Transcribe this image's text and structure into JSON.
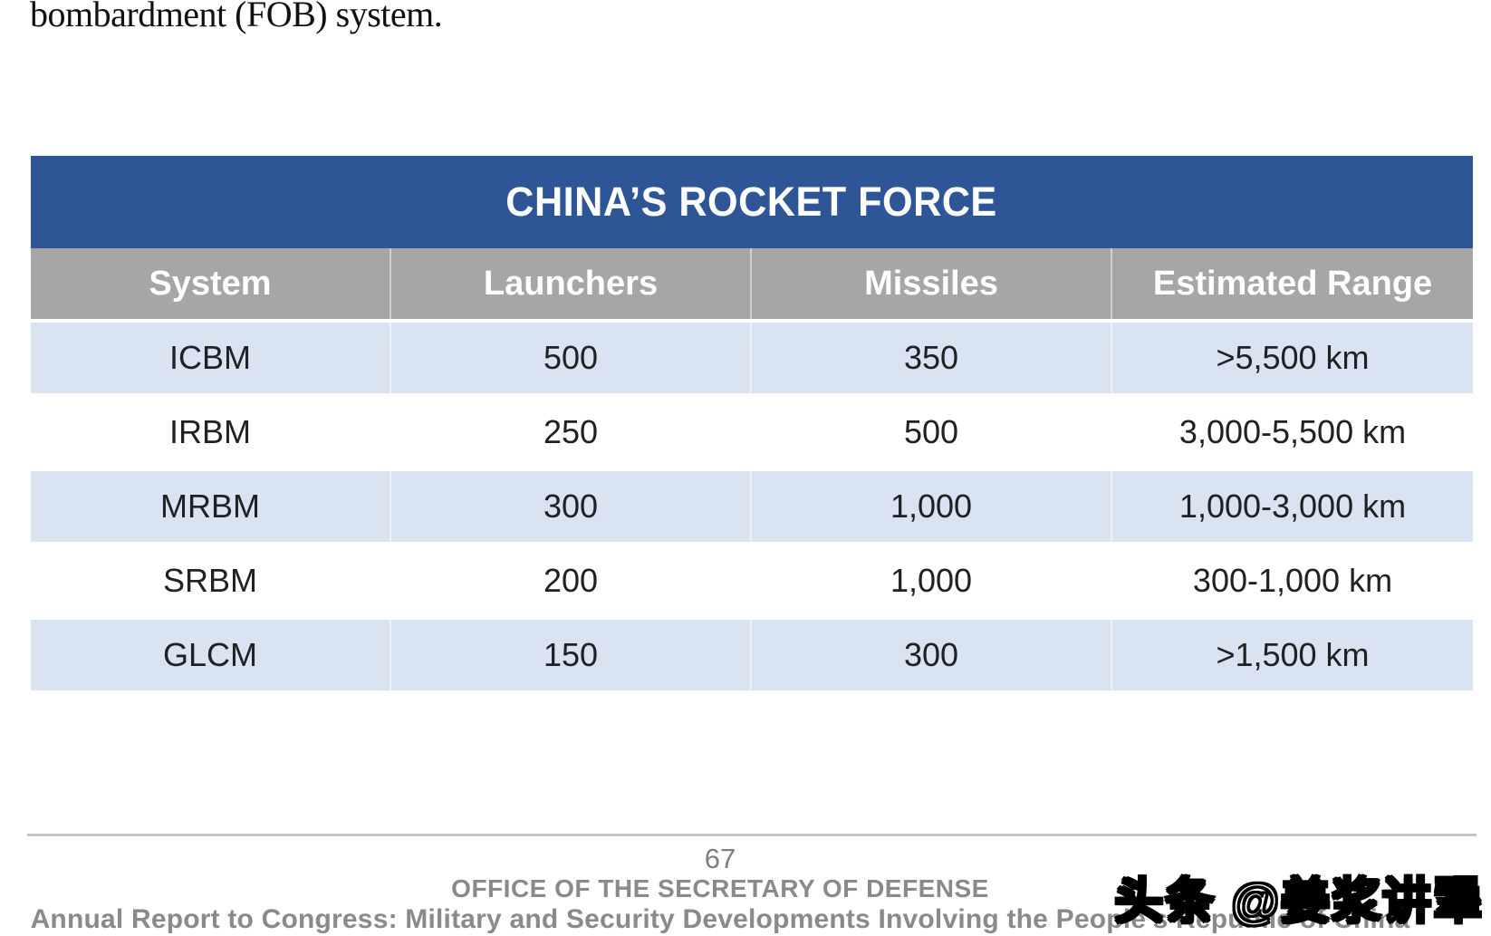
{
  "page": {
    "top_text": "bombardment (FOB) system.",
    "watermark_text": "头条 @姜浆讲犟"
  },
  "table": {
    "title": "CHINA’S ROCKET FORCE",
    "columns": {
      "system": "System",
      "launchers": "Launchers",
      "missiles": "Missiles",
      "range": "Estimated Range"
    },
    "rows": [
      {
        "system": "ICBM",
        "launchers": "500",
        "missiles": "350",
        "range": ">5,500 km"
      },
      {
        "system": "IRBM",
        "launchers": "250",
        "missiles": "500",
        "range": "3,000-5,500 km"
      },
      {
        "system": "MRBM",
        "launchers": "300",
        "missiles": "1,000",
        "range": "1,000-3,000 km"
      },
      {
        "system": "SRBM",
        "launchers": "200",
        "missiles": "1,000",
        "range": "300-1,000 km"
      },
      {
        "system": "GLCM",
        "launchers": "150",
        "missiles": "300",
        "range": ">1,500 km"
      }
    ],
    "colors": {
      "title_bar": "#2E5596",
      "header_bar": "#A6A6A6",
      "row_alt_blue": "#DAE3F1",
      "row_alt_white": "#FFFFFF"
    }
  },
  "footer": {
    "page_number": "67",
    "office_line": "OFFICE OF THE SECRETARY OF DEFENSE",
    "report_line": "Annual Report to Congress: Military and Security Developments Involving the People’s Republic of China"
  }
}
